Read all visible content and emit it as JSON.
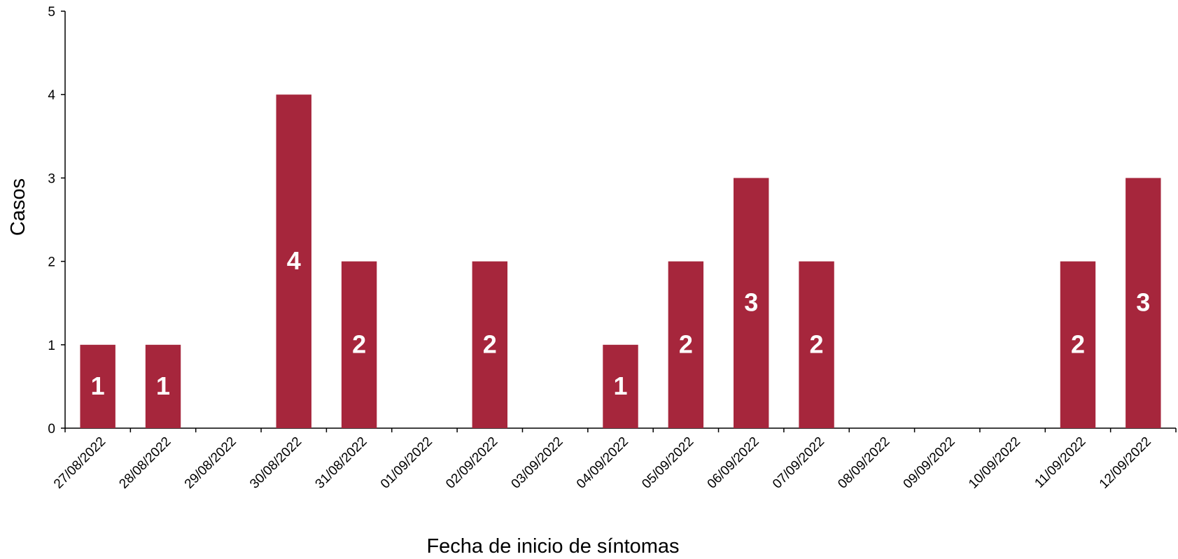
{
  "chart_data": {
    "type": "bar",
    "x_label": "Fecha de inicio de síntomas",
    "y_label": "Casos",
    "categories": [
      "27/08/2022",
      "28/08/2022",
      "29/08/2022",
      "30/08/2022",
      "31/08/2022",
      "01/09/2022",
      "02/09/2022",
      "03/09/2022",
      "04/09/2022",
      "05/09/2022",
      "06/09/2022",
      "07/09/2022",
      "08/09/2022",
      "09/09/2022",
      "10/09/2022",
      "11/09/2022",
      "12/09/2022"
    ],
    "values": [
      1,
      1,
      0,
      4,
      2,
      0,
      2,
      0,
      1,
      2,
      3,
      2,
      0,
      0,
      0,
      2,
      3
    ],
    "color": "#a6263c",
    "ylim": [
      0,
      5
    ],
    "yticks": [
      0,
      1,
      2,
      3,
      4,
      5
    ],
    "grid": false
  }
}
